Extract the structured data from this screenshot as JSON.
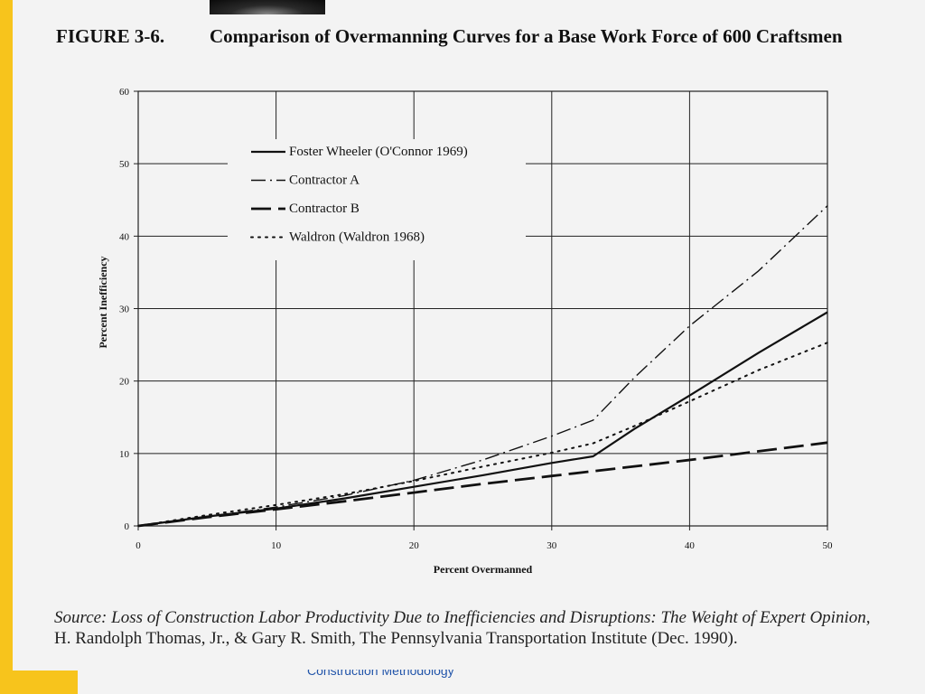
{
  "figure": {
    "number": "FIGURE 3-6.",
    "title": "Comparison of Overmanning Curves for a Base Work Force of 600 Craftsmen"
  },
  "source": {
    "prefix": "Source: ",
    "italic": "Loss of Construction Labor Productivity Due to Inefficiencies and Disruptions: The Weight of Expert Opinion",
    "rest": ", H. Randolph Thomas, Jr., & Gary R. Smith, The Pennsylvania Transportation Institute (Dec. 1990)."
  },
  "footer": "Construction Methodology",
  "colors": {
    "accent_bar": "#f7c41c",
    "ink": "#111111",
    "grid": "#222222"
  },
  "chart_data": {
    "type": "line",
    "xlabel": "Percent Overmanned",
    "ylabel": "Percent Inefficiency",
    "xlim": [
      0,
      50
    ],
    "ylim": [
      0,
      60
    ],
    "xticks": [
      0,
      10,
      20,
      30,
      40,
      50
    ],
    "yticks": [
      0,
      10,
      20,
      30,
      40,
      50,
      60
    ],
    "grid": true,
    "legend_position": "upper-left",
    "series": [
      {
        "name": "Foster Wheeler (O'Connor 1969)",
        "style": "solid",
        "x": [
          0,
          5,
          10,
          15,
          20,
          25,
          30,
          33,
          36,
          40,
          45,
          50
        ],
        "y": [
          0,
          1.3,
          2.4,
          3.8,
          5.4,
          7.0,
          8.7,
          9.6,
          13.4,
          18.0,
          23.9,
          29.5
        ]
      },
      {
        "name": "Contractor A",
        "style": "dashdot",
        "x": [
          0,
          5,
          10,
          15,
          20,
          25,
          30,
          33,
          36,
          40,
          45,
          50
        ],
        "y": [
          0,
          1.3,
          2.6,
          4.2,
          6.3,
          9.1,
          12.4,
          14.6,
          20.5,
          27.6,
          35.2,
          44.2
        ]
      },
      {
        "name": "Contractor B",
        "style": "longdash",
        "x": [
          0,
          5,
          10,
          15,
          20,
          25,
          30,
          35,
          40,
          45,
          50
        ],
        "y": [
          0,
          1.2,
          2.3,
          3.4,
          4.6,
          5.8,
          6.9,
          8.0,
          9.1,
          10.3,
          11.5
        ]
      },
      {
        "name": "Waldron (Waldron 1968)",
        "style": "dotted",
        "x": [
          0,
          5,
          10,
          15,
          20,
          25,
          30,
          33,
          36,
          40,
          45,
          50
        ],
        "y": [
          0,
          1.5,
          2.9,
          4.4,
          6.2,
          8.2,
          10.1,
          11.4,
          13.8,
          17.2,
          21.5,
          25.3
        ]
      }
    ]
  }
}
